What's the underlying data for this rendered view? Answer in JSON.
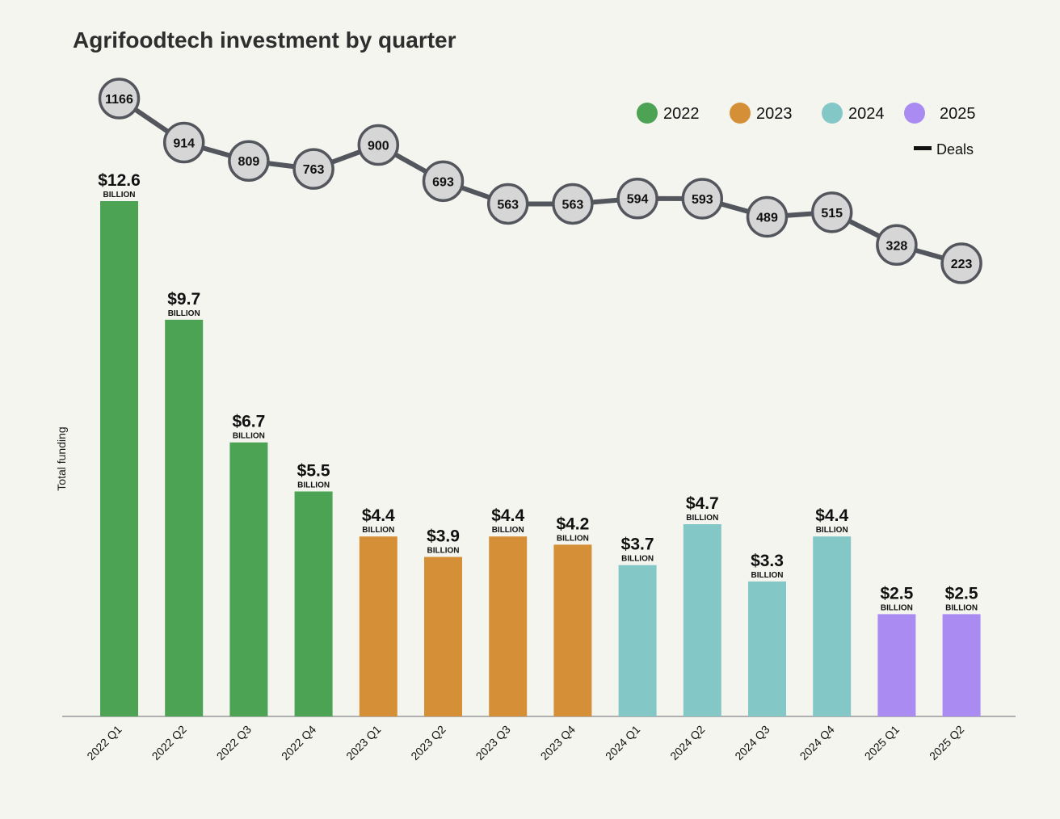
{
  "chart_data": {
    "type": "bar",
    "title": "Agrifoodtech investment by quarter",
    "ylabel": "Total funding",
    "categories": [
      "2022 Q1",
      "2022 Q2",
      "2022 Q3",
      "2022 Q4",
      "2023 Q1",
      "2023 Q2",
      "2023 Q3",
      "2023 Q4",
      "2024 Q1",
      "2024 Q2",
      "2024 Q3",
      "2024 Q4",
      "2025 Q1",
      "2025 Q2"
    ],
    "years": [
      "2022",
      "2022",
      "2022",
      "2022",
      "2023",
      "2023",
      "2023",
      "2023",
      "2024",
      "2024",
      "2024",
      "2024",
      "2025",
      "2025"
    ],
    "series": [
      {
        "name": "Total funding",
        "type": "bar",
        "unit": "BILLION",
        "values": [
          12.6,
          9.7,
          6.7,
          5.5,
          4.4,
          3.9,
          4.4,
          4.2,
          3.7,
          4.7,
          3.3,
          4.4,
          2.5,
          2.5
        ],
        "labels": [
          "$12.6",
          "$9.7",
          "$6.7",
          "$5.5",
          "$4.4",
          "$3.9",
          "$4.4",
          "$4.2",
          "$3.7",
          "$4.7",
          "$3.3",
          "$4.4",
          "$2.5",
          "$2.5"
        ]
      },
      {
        "name": "Deals",
        "type": "line",
        "values": [
          1166,
          914,
          809,
          763,
          900,
          693,
          563,
          563,
          594,
          593,
          489,
          515,
          328,
          223
        ]
      }
    ],
    "legend": {
      "placement": "top-right",
      "years": [
        {
          "label": "2022",
          "color": "#4ba353"
        },
        {
          "label": "2023",
          "color": "#d58f37"
        },
        {
          "label": "2024",
          "color": "#84c7c7"
        },
        {
          "label": "2025",
          "color": "#a98bf2"
        }
      ],
      "line_label": "Deals"
    },
    "ylim": [
      0,
      12.6
    ],
    "deals_range": [
      223,
      1166
    ],
    "grid": false,
    "colors": {
      "line": "#54565d",
      "marker_fill": "#d6d6d6",
      "axis": "#9a9a9a",
      "text": "#111111"
    }
  }
}
